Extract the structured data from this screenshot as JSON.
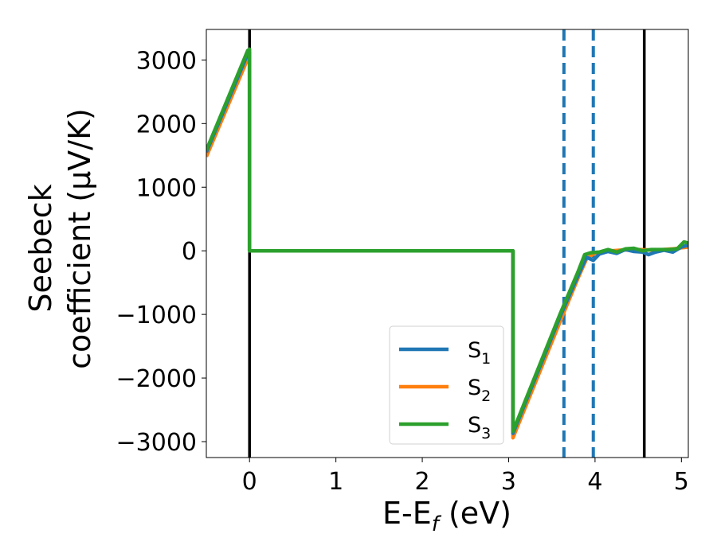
{
  "chart_data": {
    "type": "line",
    "xlabel_main": "E-E",
    "xlabel_sub": "f",
    "xlabel_unit": " (eV)",
    "ylabel_line1": "Seebeck",
    "ylabel_line2": "coefficient  (μV/K)",
    "xlim": [
      -0.5,
      5.08
    ],
    "ylim": [
      -3250,
      3480
    ],
    "xticks": [
      0,
      1,
      2,
      3,
      4,
      5
    ],
    "xtick_labels": [
      "0",
      "1",
      "2",
      "3",
      "4",
      "5"
    ],
    "yticks": [
      -3000,
      -2000,
      -1000,
      0,
      1000,
      2000,
      3000
    ],
    "ytick_labels": [
      "−3000",
      "−2000",
      "−1000",
      "0",
      "1000",
      "2000",
      "3000"
    ],
    "grid": false,
    "legend_position": "lower-right",
    "vlines": [
      {
        "x": 0.0,
        "style": "solid",
        "color": "#000000"
      },
      {
        "x": 4.57,
        "style": "solid",
        "color": "#000000"
      },
      {
        "x": 3.64,
        "style": "dashed",
        "color": "#1f77b4"
      },
      {
        "x": 3.98,
        "style": "dashed",
        "color": "#1f77b4"
      }
    ],
    "series": [
      {
        "name": "S",
        "sub": "1",
        "color": "#1f77b4",
        "x": [
          -0.5,
          -0.02,
          0.0,
          0.0,
          3.05,
          3.05,
          3.6,
          3.8,
          3.9,
          3.98,
          4.05,
          4.15,
          4.25,
          4.35,
          4.45,
          4.55,
          4.62,
          4.7,
          4.8,
          4.9,
          5.0,
          5.08
        ],
        "y": [
          1550,
          3100,
          3120,
          0,
          0,
          -2870,
          -1020,
          -400,
          -100,
          -150,
          -50,
          -10,
          -40,
          20,
          -10,
          -20,
          -60,
          -20,
          10,
          -20,
          60,
          90
        ]
      },
      {
        "name": "S",
        "sub": "2",
        "color": "#ff7f0e",
        "x": [
          -0.5,
          -0.02,
          0.0,
          0.0,
          3.05,
          3.05,
          3.6,
          3.8,
          3.9,
          3.98,
          4.1,
          4.3,
          4.5,
          4.7,
          4.9,
          5.08
        ],
        "y": [
          1480,
          3020,
          3050,
          0,
          0,
          -2940,
          -1100,
          -440,
          -130,
          -50,
          -10,
          10,
          20,
          10,
          30,
          60
        ]
      },
      {
        "name": "S",
        "sub": "3",
        "color": "#2ca02c",
        "x": [
          -0.5,
          -0.02,
          0.0,
          0.0,
          3.05,
          3.05,
          3.6,
          3.8,
          3.88,
          3.95,
          4.05,
          4.15,
          4.25,
          4.35,
          4.45,
          4.55,
          4.65,
          4.75,
          4.85,
          4.95,
          5.03,
          5.08
        ],
        "y": [
          1580,
          3150,
          3170,
          0,
          0,
          -2840,
          -980,
          -340,
          -60,
          -30,
          -20,
          20,
          -20,
          30,
          40,
          0,
          20,
          20,
          20,
          30,
          140,
          120
        ]
      }
    ]
  }
}
